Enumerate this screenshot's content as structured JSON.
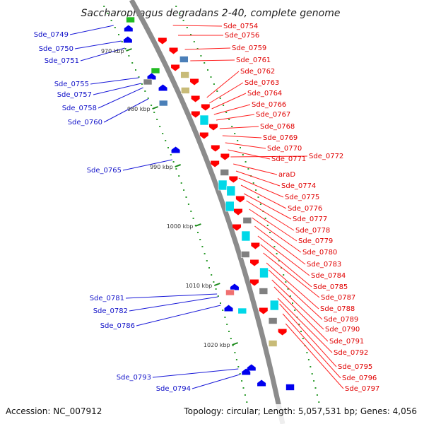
{
  "title": "Saccharophagus degradans 2-40, complete genome",
  "footer": {
    "accession": "Accession: NC_007912",
    "topology": "Topology: circular; Length: 5,057,531 bp; Genes: 4,056"
  },
  "colors": {
    "backbone": "#8c8c8c",
    "forward": "#ff0000",
    "reverse": "#0000ee",
    "cds_cyan": "#00d8e8",
    "rna_green": "#22bb22",
    "pseudo_gray": "#808080",
    "tan": "#c8bb78",
    "steel": "#4a7fb8",
    "salmon": "#f07070",
    "tick": "#1a8a1a"
  },
  "ticks": [
    {
      "label": "970 kbp"
    },
    {
      "label": "980 kbp"
    },
    {
      "label": "990 kbp"
    },
    {
      "label": "1000 kbp"
    },
    {
      "label": "1010 kbp"
    },
    {
      "label": "1020 kbp"
    }
  ],
  "labels_right": [
    {
      "text": "Sde_0754"
    },
    {
      "text": "Sde_0756"
    },
    {
      "text": "Sde_0759"
    },
    {
      "text": "Sde_0761"
    },
    {
      "text": "Sde_0762"
    },
    {
      "text": "Sde_0763"
    },
    {
      "text": "Sde_0764"
    },
    {
      "text": "Sde_0766"
    },
    {
      "text": "Sde_0767"
    },
    {
      "text": "Sde_0768"
    },
    {
      "text": "Sde_0769"
    },
    {
      "text": "Sde_0770"
    },
    {
      "text": "Sde_0771"
    },
    {
      "text": "Sde_0772"
    },
    {
      "text": "araD"
    },
    {
      "text": "Sde_0774"
    },
    {
      "text": "Sde_0775"
    },
    {
      "text": "Sde_0776"
    },
    {
      "text": "Sde_0777"
    },
    {
      "text": "Sde_0778"
    },
    {
      "text": "Sde_0779"
    },
    {
      "text": "Sde_0780"
    },
    {
      "text": "Sde_0783"
    },
    {
      "text": "Sde_0784"
    },
    {
      "text": "Sde_0785"
    },
    {
      "text": "Sde_0787"
    },
    {
      "text": "Sde_0788"
    },
    {
      "text": "Sde_0789"
    },
    {
      "text": "Sde_0790"
    },
    {
      "text": "Sde_0791"
    },
    {
      "text": "Sde_0792"
    },
    {
      "text": "Sde_0795"
    },
    {
      "text": "Sde_0796"
    },
    {
      "text": "Sde_0797"
    }
  ],
  "labels_left": [
    {
      "text": "Sde_0749"
    },
    {
      "text": "Sde_0750"
    },
    {
      "text": "Sde_0751"
    },
    {
      "text": "Sde_0755"
    },
    {
      "text": "Sde_0757"
    },
    {
      "text": "Sde_0758"
    },
    {
      "text": "Sde_0760"
    },
    {
      "text": "Sde_0765"
    },
    {
      "text": "Sde_0781"
    },
    {
      "text": "Sde_0782"
    },
    {
      "text": "Sde_0786"
    },
    {
      "text": "Sde_0793"
    },
    {
      "text": "Sde_0794"
    }
  ],
  "features_right": [
    {
      "kind": "arrow",
      "color": "forward"
    },
    {
      "kind": "arrow",
      "color": "forward"
    },
    {
      "kind": "box",
      "color": "steel"
    },
    {
      "kind": "arrow",
      "color": "forward"
    },
    {
      "kind": "box",
      "color": "tan"
    },
    {
      "kind": "arrow",
      "color": "forward"
    },
    {
      "kind": "box",
      "color": "tan"
    },
    {
      "kind": "arrow",
      "color": "forward"
    },
    {
      "kind": "arrow",
      "color": "forward"
    },
    {
      "kind": "arrow",
      "color": "forward"
    },
    {
      "kind": "box",
      "color": "cds_cyan"
    },
    {
      "kind": "arrow",
      "color": "forward"
    },
    {
      "kind": "arrow",
      "color": "forward"
    },
    {
      "kind": "arrow",
      "color": "forward"
    },
    {
      "kind": "arrow",
      "color": "forward"
    },
    {
      "kind": "arrow",
      "color": "forward"
    },
    {
      "kind": "box",
      "color": "pseudo_gray"
    },
    {
      "kind": "arrow",
      "color": "forward"
    },
    {
      "kind": "box",
      "color": "cds_cyan"
    },
    {
      "kind": "box",
      "color": "cds_cyan"
    },
    {
      "kind": "arrow",
      "color": "forward"
    },
    {
      "kind": "box",
      "color": "cds_cyan"
    },
    {
      "kind": "arrow",
      "color": "forward"
    },
    {
      "kind": "box",
      "color": "pseudo_gray"
    },
    {
      "kind": "arrow",
      "color": "forward"
    },
    {
      "kind": "box",
      "color": "cds_cyan"
    },
    {
      "kind": "arrow",
      "color": "forward"
    },
    {
      "kind": "box",
      "color": "pseudo_gray"
    },
    {
      "kind": "arrow",
      "color": "forward"
    },
    {
      "kind": "box",
      "color": "cds_cyan"
    },
    {
      "kind": "arrow",
      "color": "forward"
    },
    {
      "kind": "box",
      "color": "pseudo_gray"
    },
    {
      "kind": "box",
      "color": "cds_cyan"
    },
    {
      "kind": "arrow",
      "color": "forward"
    },
    {
      "kind": "box",
      "color": "pseudo_gray"
    },
    {
      "kind": "arrow",
      "color": "forward"
    },
    {
      "kind": "box",
      "color": "tan"
    },
    {
      "kind": "box",
      "color": "reverse"
    }
  ],
  "features_left": [
    {
      "kind": "box",
      "color": "rna_green"
    },
    {
      "kind": "arrow",
      "color": "reverse"
    },
    {
      "kind": "arrow",
      "color": "reverse"
    },
    {
      "kind": "box",
      "color": "rna_green"
    },
    {
      "kind": "arrow",
      "color": "reverse"
    },
    {
      "kind": "box",
      "color": "pseudo_gray"
    },
    {
      "kind": "arrow",
      "color": "reverse"
    },
    {
      "kind": "box",
      "color": "steel"
    },
    {
      "kind": "arrow",
      "color": "reverse"
    },
    {
      "kind": "arrow",
      "color": "reverse"
    },
    {
      "kind": "box",
      "color": "salmon"
    },
    {
      "kind": "arrow",
      "color": "reverse"
    },
    {
      "kind": "box",
      "color": "cds_cyan"
    },
    {
      "kind": "arrow",
      "color": "reverse"
    },
    {
      "kind": "arrow",
      "color": "reverse"
    },
    {
      "kind": "arrow",
      "color": "reverse"
    }
  ]
}
